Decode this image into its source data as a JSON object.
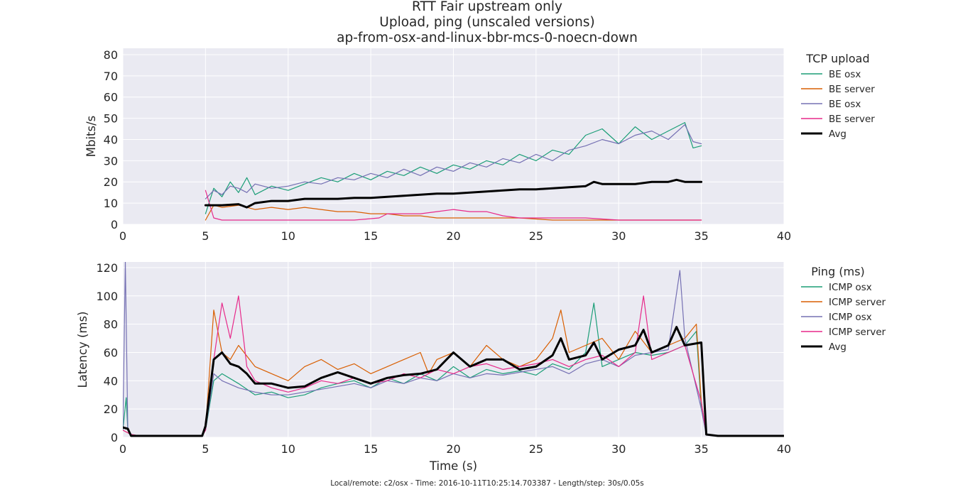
{
  "figure": {
    "title_lines": [
      "RTT Fair upstream only",
      "Upload, ping (unscaled versions)",
      "ap-from-osx-and-linux-bbr-mcs-0-noecn-down"
    ],
    "footer": "Local/remote: c2/osx - Time: 2016-10-11T10:25:14.703387 - Length/step: 30s/0.05s",
    "background": "#eaeaf2",
    "grid_color": "#ffffff"
  },
  "chart_data": [
    {
      "type": "line",
      "title": "",
      "xlabel": "",
      "ylabel": "Mbits/s",
      "xlim": [
        0,
        40
      ],
      "ylim": [
        0,
        83
      ],
      "xticks": [
        0,
        5,
        10,
        15,
        20,
        25,
        30,
        35,
        40
      ],
      "yticks": [
        0,
        10,
        20,
        30,
        40,
        50,
        60,
        70,
        80
      ],
      "grid": true,
      "legend": {
        "title": "TCP upload",
        "placement": "right"
      },
      "series": [
        {
          "name": "BE osx",
          "color": "#1b9e77",
          "width": 1.2,
          "x": [
            5.0,
            5.5,
            6.0,
            6.5,
            7.0,
            7.5,
            8.0,
            9.0,
            10.0,
            11.0,
            12.0,
            13.0,
            14.0,
            15.0,
            16.0,
            17.0,
            18.0,
            19.0,
            20.0,
            21.0,
            22.0,
            23.0,
            24.0,
            25.0,
            26.0,
            27.0,
            28.0,
            29.0,
            30.0,
            31.0,
            32.0,
            33.0,
            34.0,
            34.5,
            35.0
          ],
          "y": [
            5,
            17,
            13,
            20,
            15,
            22,
            14,
            18,
            16,
            19,
            22,
            20,
            24,
            21,
            25,
            23,
            27,
            24,
            28,
            26,
            30,
            28,
            33,
            30,
            35,
            33,
            42,
            45,
            38,
            46,
            40,
            44,
            48,
            36,
            37
          ]
        },
        {
          "name": "BE server",
          "color": "#d95f02",
          "width": 1.2,
          "x": [
            5.0,
            5.5,
            6.0,
            7.0,
            8.0,
            9.0,
            10.0,
            11.0,
            12.0,
            13.0,
            14.0,
            15.0,
            16.0,
            17.0,
            18.0,
            19.0,
            20.0,
            22.0,
            24.0,
            26.0,
            28.0,
            30.0,
            32.0,
            34.0,
            35.0
          ],
          "y": [
            2,
            9,
            8,
            9,
            7,
            8,
            7,
            8,
            7,
            6,
            6,
            5,
            5,
            4,
            4,
            3,
            3,
            3,
            3,
            2,
            2,
            2,
            2,
            2,
            2
          ]
        },
        {
          "name": "BE osx",
          "color": "#7570b3",
          "width": 1.2,
          "x": [
            5.0,
            5.5,
            6.0,
            6.5,
            7.0,
            7.5,
            8.0,
            9.0,
            10.0,
            11.0,
            12.0,
            13.0,
            14.0,
            15.0,
            16.0,
            17.0,
            18.0,
            19.0,
            20.0,
            21.0,
            22.0,
            23.0,
            24.0,
            25.0,
            26.0,
            27.0,
            28.0,
            29.0,
            30.0,
            31.0,
            32.0,
            33.0,
            34.0,
            34.5,
            35.0
          ],
          "y": [
            12,
            16,
            14,
            18,
            17,
            15,
            19,
            17,
            18,
            20,
            19,
            22,
            21,
            24,
            22,
            26,
            23,
            27,
            25,
            29,
            27,
            31,
            29,
            33,
            30,
            35,
            37,
            40,
            38,
            42,
            44,
            40,
            47,
            39,
            38
          ]
        },
        {
          "name": "BE server",
          "color": "#e7298a",
          "width": 1.2,
          "x": [
            5.0,
            5.5,
            6.0,
            8.0,
            10.0,
            12.0,
            14.0,
            15.5,
            16.0,
            17.0,
            18.0,
            19.0,
            20.0,
            21.0,
            22.0,
            23.0,
            24.0,
            26.0,
            28.0,
            30.0,
            32.0,
            34.0,
            35.0
          ],
          "y": [
            16,
            3,
            2,
            2,
            2,
            2,
            2,
            3,
            5,
            5,
            5,
            6,
            7,
            6,
            6,
            4,
            3,
            3,
            3,
            2,
            2,
            2,
            2
          ]
        },
        {
          "name": "Avg",
          "color": "#000000",
          "width": 3,
          "x": [
            5.0,
            6.0,
            7.0,
            7.5,
            8.0,
            9.0,
            10.0,
            11.0,
            12.0,
            13.0,
            14.0,
            15.0,
            16.0,
            17.0,
            18.0,
            19.0,
            20.0,
            21.0,
            22.0,
            23.0,
            24.0,
            25.0,
            26.0,
            27.0,
            28.0,
            28.5,
            29.0,
            30.0,
            31.0,
            32.0,
            33.0,
            33.5,
            34.0,
            35.0
          ],
          "y": [
            9,
            9,
            9.5,
            8,
            10,
            11,
            11,
            12,
            12,
            12,
            12.5,
            12.5,
            13,
            13.5,
            14,
            14.5,
            14.5,
            15,
            15.5,
            16,
            16.5,
            16.5,
            17,
            17.5,
            18,
            20,
            19,
            19,
            19,
            20,
            20,
            21,
            20,
            20
          ]
        }
      ]
    },
    {
      "type": "line",
      "title": "",
      "xlabel": "Time (s)",
      "ylabel": "Latency (ms)",
      "xlim": [
        0,
        40
      ],
      "ylim": [
        0,
        124
      ],
      "xticks": [
        0,
        5,
        10,
        15,
        20,
        25,
        30,
        35,
        40
      ],
      "yticks": [
        0,
        20,
        40,
        60,
        80,
        100,
        120
      ],
      "grid": true,
      "legend": {
        "title": "Ping (ms)",
        "placement": "right"
      },
      "series": [
        {
          "name": "ICMP osx",
          "color": "#1b9e77",
          "width": 1.2,
          "x": [
            0.0,
            0.2,
            0.3,
            0.5,
            1.0,
            3.0,
            4.8,
            5.0,
            5.5,
            6.0,
            7.0,
            8.0,
            9.0,
            10.0,
            11.0,
            12.0,
            13.0,
            14.0,
            15.0,
            16.0,
            17.0,
            18.0,
            19.0,
            20.0,
            21.0,
            22.0,
            23.0,
            24.0,
            25.0,
            26.0,
            27.0,
            28.0,
            28.5,
            29.0,
            30.0,
            31.0,
            32.0,
            33.0,
            34.0,
            34.7,
            35.0,
            35.3,
            36.0,
            38.0,
            40.0
          ],
          "y": [
            5,
            28,
            5,
            1,
            1,
            1,
            1,
            5,
            40,
            45,
            38,
            30,
            32,
            28,
            30,
            35,
            38,
            40,
            35,
            42,
            38,
            45,
            40,
            50,
            42,
            48,
            45,
            47,
            44,
            52,
            48,
            60,
            95,
            50,
            55,
            60,
            58,
            60,
            65,
            75,
            20,
            2,
            1,
            1,
            1
          ]
        },
        {
          "name": "ICMP server",
          "color": "#d95f02",
          "width": 1.2,
          "x": [
            0.0,
            0.5,
            1.0,
            3.0,
            4.8,
            5.0,
            5.5,
            6.0,
            6.5,
            7.0,
            8.0,
            9.0,
            10.0,
            11.0,
            12.0,
            13.0,
            14.0,
            15.0,
            16.0,
            17.0,
            18.0,
            18.5,
            19.0,
            20.0,
            21.0,
            22.0,
            23.0,
            24.0,
            25.0,
            26.0,
            26.5,
            27.0,
            28.0,
            29.0,
            30.0,
            31.0,
            32.0,
            33.0,
            34.0,
            34.7,
            35.0,
            35.3,
            36.0,
            38.0,
            40.0
          ],
          "y": [
            5,
            2,
            1,
            1,
            1,
            5,
            90,
            60,
            55,
            65,
            50,
            45,
            40,
            50,
            55,
            48,
            52,
            45,
            50,
            55,
            60,
            45,
            55,
            60,
            50,
            65,
            55,
            50,
            55,
            70,
            90,
            60,
            65,
            70,
            55,
            75,
            60,
            65,
            70,
            80,
            25,
            2,
            1,
            1,
            1
          ]
        },
        {
          "name": "ICMP osx",
          "color": "#7570b3",
          "width": 1.2,
          "x": [
            0.0,
            0.15,
            0.3,
            0.5,
            1.0,
            3.0,
            4.8,
            5.0,
            5.5,
            6.0,
            7.0,
            8.0,
            9.0,
            10.0,
            11.0,
            12.0,
            13.0,
            14.0,
            15.0,
            16.0,
            17.0,
            18.0,
            19.0,
            20.0,
            21.0,
            22.0,
            23.0,
            24.0,
            25.0,
            26.0,
            27.0,
            28.0,
            29.0,
            30.0,
            31.0,
            32.0,
            33.0,
            33.7,
            34.0,
            35.0,
            35.3,
            36.0,
            38.0,
            40.0
          ],
          "y": [
            5,
            124,
            5,
            2,
            1,
            1,
            1,
            5,
            45,
            40,
            35,
            32,
            30,
            30,
            32,
            34,
            36,
            38,
            35,
            40,
            38,
            42,
            40,
            45,
            42,
            45,
            44,
            46,
            48,
            50,
            45,
            52,
            55,
            50,
            58,
            60,
            62,
            118,
            70,
            20,
            2,
            1,
            1,
            1
          ]
        },
        {
          "name": "ICMP server",
          "color": "#e7298a",
          "width": 1.2,
          "x": [
            0.0,
            0.5,
            1.0,
            3.0,
            4.8,
            5.0,
            5.5,
            6.0,
            6.5,
            7.0,
            7.5,
            8.0,
            9.0,
            10.0,
            11.0,
            12.0,
            13.0,
            14.0,
            15.0,
            16.0,
            17.0,
            18.0,
            19.0,
            20.0,
            21.0,
            22.0,
            23.0,
            24.0,
            25.0,
            26.0,
            27.0,
            28.0,
            29.0,
            30.0,
            31.0,
            31.5,
            32.0,
            33.0,
            34.0,
            35.0,
            35.3,
            36.0,
            38.0,
            40.0
          ],
          "y": [
            5,
            2,
            1,
            1,
            1,
            5,
            55,
            95,
            70,
            100,
            50,
            40,
            35,
            32,
            35,
            40,
            38,
            42,
            38,
            40,
            45,
            42,
            48,
            45,
            50,
            52,
            48,
            50,
            52,
            55,
            50,
            55,
            58,
            50,
            60,
            100,
            55,
            60,
            65,
            25,
            2,
            1,
            1,
            1
          ]
        },
        {
          "name": "Avg",
          "color": "#000000",
          "width": 3,
          "x": [
            0.0,
            0.3,
            0.5,
            1.0,
            3.0,
            4.8,
            5.0,
            5.5,
            6.0,
            6.5,
            7.0,
            7.5,
            8.0,
            9.0,
            10.0,
            11.0,
            12.0,
            13.0,
            14.0,
            15.0,
            16.0,
            17.0,
            18.0,
            19.0,
            20.0,
            21.0,
            22.0,
            23.0,
            24.0,
            25.0,
            26.0,
            26.5,
            27.0,
            28.0,
            28.5,
            29.0,
            30.0,
            31.0,
            31.5,
            32.0,
            33.0,
            33.5,
            34.0,
            35.0,
            35.3,
            36.0,
            38.0,
            40.0
          ],
          "y": [
            7,
            6,
            1,
            1,
            1,
            1,
            8,
            55,
            60,
            52,
            50,
            45,
            38,
            38,
            35,
            36,
            42,
            46,
            42,
            38,
            42,
            44,
            45,
            48,
            60,
            50,
            55,
            55,
            48,
            50,
            58,
            70,
            55,
            58,
            67,
            55,
            62,
            65,
            76,
            60,
            65,
            78,
            65,
            67,
            2,
            1,
            1,
            1
          ]
        }
      ]
    }
  ]
}
